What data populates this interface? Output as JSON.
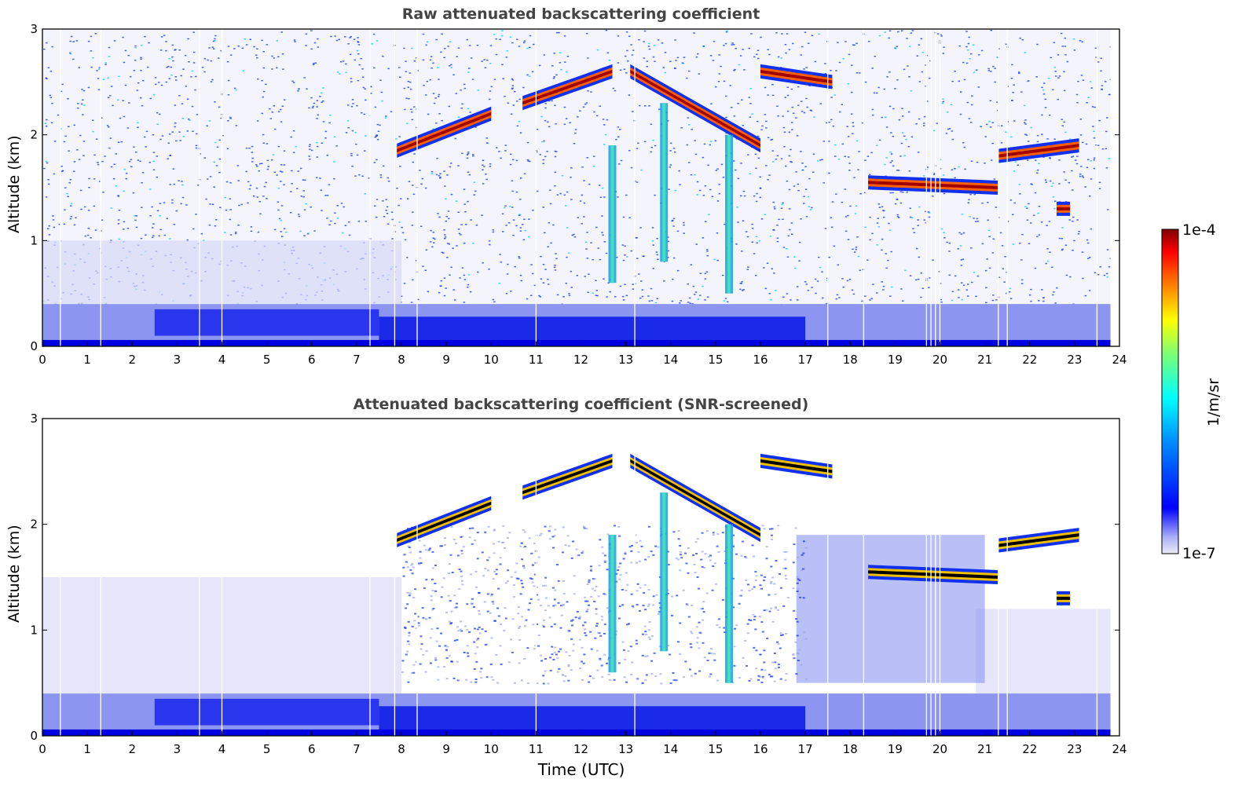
{
  "chart_data": [
    {
      "type": "heatmap",
      "title": "Raw attenuated backscattering coefficient",
      "ylabel": "Altitude (km)",
      "xlabel": "",
      "xlim": [
        0,
        24
      ],
      "ylim": [
        0,
        3
      ],
      "xticks": [
        "0",
        "1",
        "2",
        "3",
        "4",
        "5",
        "6",
        "7",
        "8",
        "9",
        "10",
        "11",
        "12",
        "13",
        "14",
        "15",
        "16",
        "17",
        "18",
        "19",
        "20",
        "21",
        "22",
        "23",
        "24"
      ],
      "yticks": [
        "0",
        "1",
        "2",
        "3"
      ],
      "features": {
        "cloud_layers_km": [
          {
            "t_start": 7.9,
            "t_end": 10.0,
            "alt_start": 1.85,
            "alt_end": 2.2
          },
          {
            "t_start": 10.7,
            "t_end": 12.7,
            "alt_start": 2.3,
            "alt_end": 2.6
          },
          {
            "t_start": 13.1,
            "t_end": 16.0,
            "alt_start": 2.6,
            "alt_end": 1.9
          },
          {
            "t_start": 16.0,
            "t_end": 17.6,
            "alt_start": 2.6,
            "alt_end": 2.5
          },
          {
            "t_start": 18.4,
            "t_end": 21.3,
            "alt_start": 1.55,
            "alt_end": 1.5
          },
          {
            "t_start": 21.3,
            "t_end": 23.1,
            "alt_start": 1.8,
            "alt_end": 1.9
          },
          {
            "t_start": 22.6,
            "t_end": 22.9,
            "alt_start": 1.3,
            "alt_end": 1.3
          }
        ],
        "boundary_layer_top_km": 0.4
      }
    },
    {
      "type": "heatmap",
      "title": "Attenuated backscattering coefficient (SNR-screened)",
      "ylabel": "Altitude (km)",
      "xlabel": "Time (UTC)",
      "xlim": [
        0,
        24
      ],
      "ylim": [
        0,
        3
      ],
      "xticks": [
        "0",
        "1",
        "2",
        "3",
        "4",
        "5",
        "6",
        "7",
        "8",
        "9",
        "10",
        "11",
        "12",
        "13",
        "14",
        "15",
        "16",
        "17",
        "18",
        "19",
        "20",
        "21",
        "22",
        "23",
        "24"
      ],
      "yticks": [
        "0",
        "1",
        "2",
        "3"
      ]
    }
  ],
  "colorbar": {
    "label": "1/m/sr",
    "max_label": "1e-4",
    "min_label": "1e-7",
    "colormap": "jet",
    "scale": "log"
  },
  "colors": {
    "low": "#e6e6fa",
    "mid_blue": "#0000ff",
    "cyan": "#00ffff",
    "yellow": "#ffff00",
    "red": "#ff0000",
    "dark_red": "#800000",
    "title_gray": "#444444"
  }
}
